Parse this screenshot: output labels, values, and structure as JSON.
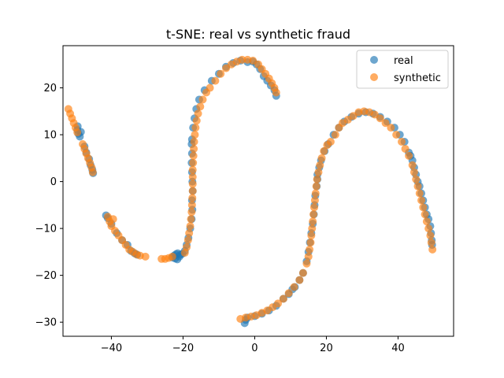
{
  "chart_data": {
    "type": "scatter",
    "title": "t-SNE: real vs synthetic fraud",
    "xlabel": "",
    "ylabel": "",
    "xlim": [
      -53.5,
      55.5
    ],
    "ylim": [
      -33,
      29
    ],
    "xticks": [
      -40,
      -20,
      0,
      20,
      40
    ],
    "yticks": [
      -30,
      -20,
      -10,
      0,
      10,
      20
    ],
    "grid": false,
    "legend": {
      "position": "top-right"
    },
    "series": [
      {
        "name": "real",
        "color": "#1f77b4",
        "points": [
          [
            -49.5,
            11
          ],
          [
            -49.2,
            10.2
          ],
          [
            -48.8,
            9.6
          ],
          [
            -49.4,
            11.8
          ],
          [
            -48.5,
            10.6
          ],
          [
            -47.5,
            7.5
          ],
          [
            -47,
            6.2
          ],
          [
            -46.2,
            4.8
          ],
          [
            -45.8,
            3.5
          ],
          [
            -45.3,
            2.5
          ],
          [
            -45.1,
            1.8
          ],
          [
            -41.5,
            -7.2
          ],
          [
            -41,
            -7.8
          ],
          [
            -40,
            -9
          ],
          [
            -38.5,
            -11
          ],
          [
            -37,
            -12.5
          ],
          [
            -35.5,
            -13.5
          ],
          [
            -34.5,
            -14.8
          ],
          [
            -33.5,
            -15.3
          ],
          [
            -32.8,
            -15.6
          ],
          [
            -23,
            -16.2
          ],
          [
            -22.5,
            -15.8
          ],
          [
            -22,
            -15.5
          ],
          [
            -21.5,
            -15.3
          ],
          [
            -21,
            -16
          ],
          [
            -20.8,
            -15.6
          ],
          [
            -22.2,
            -16.4
          ],
          [
            -21.6,
            -16.6
          ],
          [
            -20.2,
            -15.4
          ],
          [
            -19.5,
            -14.8
          ],
          [
            -19,
            -13.5
          ],
          [
            -18.5,
            -12
          ],
          [
            -18,
            -10
          ],
          [
            -17.6,
            -8
          ],
          [
            -17.4,
            -6
          ],
          [
            -17.5,
            -4
          ],
          [
            -17.3,
            -2
          ],
          [
            -17.4,
            0
          ],
          [
            -17.5,
            2
          ],
          [
            -17.6,
            4
          ],
          [
            -17.5,
            6
          ],
          [
            -17.6,
            8
          ],
          [
            -17.5,
            9
          ],
          [
            -17.2,
            11.5
          ],
          [
            -16.8,
            13.5
          ],
          [
            -16.3,
            15.5
          ],
          [
            -15.5,
            17.5
          ],
          [
            -14,
            19.5
          ],
          [
            -12,
            21.5
          ],
          [
            -10,
            23
          ],
          [
            -8,
            24.5
          ],
          [
            -6,
            25.3
          ],
          [
            -4,
            25.8
          ],
          [
            -2,
            25.5
          ],
          [
            -0.5,
            25.6
          ],
          [
            0.5,
            25
          ],
          [
            1.5,
            24
          ],
          [
            2.5,
            22.5
          ],
          [
            3.5,
            21.5
          ],
          [
            4.5,
            20.5
          ],
          [
            5.5,
            19.5
          ],
          [
            6,
            18.3
          ],
          [
            -2.5,
            -29.5
          ],
          [
            -2.8,
            -30.2
          ],
          [
            -2,
            -29
          ],
          [
            0,
            -28.7
          ],
          [
            2,
            -28.2
          ],
          [
            4,
            -27.5
          ],
          [
            6,
            -26.5
          ],
          [
            8,
            -25
          ],
          [
            9.5,
            -24
          ],
          [
            10.5,
            -23
          ],
          [
            11.2,
            -22.5
          ],
          [
            12.5,
            -21
          ],
          [
            13.5,
            -19.5
          ],
          [
            14.5,
            -17
          ],
          [
            15,
            -15
          ],
          [
            15.4,
            -13
          ],
          [
            15.8,
            -11
          ],
          [
            16.2,
            -9
          ],
          [
            16.5,
            -7
          ],
          [
            16.7,
            -5
          ],
          [
            16.9,
            -3
          ],
          [
            17.3,
            -1
          ],
          [
            17.5,
            0.5
          ],
          [
            17.5,
            1.5
          ],
          [
            18,
            3
          ],
          [
            18.5,
            4.5
          ],
          [
            19.5,
            6.5
          ],
          [
            20.5,
            8
          ],
          [
            22,
            10
          ],
          [
            23.5,
            11.5
          ],
          [
            25,
            12.8
          ],
          [
            27,
            13.8
          ],
          [
            29,
            14.5
          ],
          [
            31,
            14.8
          ],
          [
            33,
            14.5
          ],
          [
            35,
            13.8
          ],
          [
            37,
            12.8
          ],
          [
            39,
            11.5
          ],
          [
            40.5,
            10
          ],
          [
            41.8,
            8.5
          ],
          [
            43,
            6.2
          ],
          [
            43.5,
            5.5
          ],
          [
            44,
            4.5
          ],
          [
            44.5,
            3
          ],
          [
            45,
            1.5
          ],
          [
            45.5,
            0
          ],
          [
            46,
            -1
          ],
          [
            46.5,
            -2.5
          ],
          [
            47,
            -4
          ],
          [
            47.5,
            -5.5
          ],
          [
            48,
            -7
          ],
          [
            48.5,
            -8
          ],
          [
            49,
            -9.5
          ],
          [
            49.2,
            -11
          ],
          [
            49.4,
            -12.5
          ],
          [
            49.5,
            -13.5
          ]
        ]
      },
      {
        "name": "synthetic",
        "color": "#ff7f0e",
        "points": [
          [
            -52,
            15.5
          ],
          [
            -51.5,
            14.5
          ],
          [
            -51,
            13.5
          ],
          [
            -50.5,
            12.5
          ],
          [
            -50,
            11.5
          ],
          [
            -49.5,
            10.5
          ],
          [
            -48,
            8
          ],
          [
            -47.5,
            7
          ],
          [
            -47,
            6
          ],
          [
            -46.5,
            5
          ],
          [
            -46,
            4
          ],
          [
            -45.5,
            3
          ],
          [
            -45.2,
            2
          ],
          [
            -41,
            -7.5
          ],
          [
            -40.5,
            -8.5
          ],
          [
            -40,
            -9.5
          ],
          [
            -39.5,
            -8
          ],
          [
            -39,
            -10.5
          ],
          [
            -38,
            -11.5
          ],
          [
            -37,
            -12.5
          ],
          [
            -36,
            -13.5
          ],
          [
            -35,
            -14.5
          ],
          [
            -34,
            -15
          ],
          [
            -33,
            -15.5
          ],
          [
            -32,
            -15.8
          ],
          [
            -30.5,
            -16
          ],
          [
            -26,
            -16.5
          ],
          [
            -25,
            -16.5
          ],
          [
            -24,
            -16.3
          ],
          [
            -23,
            -16
          ],
          [
            -19.5,
            -15.2
          ],
          [
            -19,
            -14
          ],
          [
            -18.6,
            -12.5
          ],
          [
            -18.3,
            -11
          ],
          [
            -18,
            -9.5
          ],
          [
            -17.8,
            -8
          ],
          [
            -17.6,
            -6.5
          ],
          [
            -17.5,
            -5
          ],
          [
            -17.4,
            -3.5
          ],
          [
            -17.3,
            -2
          ],
          [
            -17.3,
            -0.5
          ],
          [
            -17.3,
            1
          ],
          [
            -17.3,
            2.5
          ],
          [
            -17.2,
            4
          ],
          [
            -17.1,
            5.5
          ],
          [
            -17,
            7
          ],
          [
            -16.9,
            8.5
          ],
          [
            -16.7,
            10
          ],
          [
            -16.5,
            11.5
          ],
          [
            -16.2,
            13
          ],
          [
            -15.8,
            14.5
          ],
          [
            -15.2,
            16
          ],
          [
            -14.5,
            17.5
          ],
          [
            -13.5,
            19
          ],
          [
            -12.5,
            20
          ],
          [
            -11,
            21.5
          ],
          [
            -9.5,
            23
          ],
          [
            -8,
            24.2
          ],
          [
            -6.5,
            25
          ],
          [
            -5,
            25.6
          ],
          [
            -3.5,
            26
          ],
          [
            -2,
            26
          ],
          [
            -0.5,
            25.8
          ],
          [
            1,
            25
          ],
          [
            2,
            24
          ],
          [
            3,
            23
          ],
          [
            4,
            22
          ],
          [
            4.8,
            21
          ],
          [
            5.5,
            20
          ],
          [
            6,
            19
          ],
          [
            -4,
            -29.3
          ],
          [
            -2.5,
            -29
          ],
          [
            -1,
            -28.8
          ],
          [
            0.5,
            -28.5
          ],
          [
            2,
            -28
          ],
          [
            3.5,
            -27.5
          ],
          [
            5,
            -26.8
          ],
          [
            6.5,
            -26
          ],
          [
            8,
            -25
          ],
          [
            9.5,
            -23.8
          ],
          [
            11,
            -22.5
          ],
          [
            12.5,
            -21
          ],
          [
            13.5,
            -19.5
          ],
          [
            14.5,
            -17.5
          ],
          [
            15,
            -16
          ],
          [
            15.3,
            -14.5
          ],
          [
            15.6,
            -13
          ],
          [
            15.8,
            -11.5
          ],
          [
            16,
            -10
          ],
          [
            16.2,
            -8.5
          ],
          [
            16.4,
            -7
          ],
          [
            16.6,
            -5.5
          ],
          [
            16.8,
            -4
          ],
          [
            17,
            -2.5
          ],
          [
            17.2,
            -1
          ],
          [
            17.4,
            0.5
          ],
          [
            17.8,
            2
          ],
          [
            18.2,
            3.5
          ],
          [
            18.7,
            5
          ],
          [
            19.3,
            6.5
          ],
          [
            20.2,
            7.8
          ],
          [
            21.2,
            8.5
          ],
          [
            22.5,
            10
          ],
          [
            23.5,
            11.5
          ],
          [
            24.5,
            12.5
          ],
          [
            26,
            13.2
          ],
          [
            27.5,
            14
          ],
          [
            29,
            14.8
          ],
          [
            30.5,
            15
          ],
          [
            32,
            14.8
          ],
          [
            33.5,
            14.3
          ],
          [
            35,
            13.5
          ],
          [
            36.5,
            12.5
          ],
          [
            38,
            11.5
          ],
          [
            39.5,
            10
          ],
          [
            41,
            8.5
          ],
          [
            42,
            7
          ],
          [
            43,
            5.5
          ],
          [
            44,
            3.5
          ],
          [
            44.5,
            2
          ],
          [
            45,
            0.5
          ],
          [
            45.5,
            -1
          ],
          [
            46,
            -2.5
          ],
          [
            46.5,
            -4
          ],
          [
            47,
            -5.5
          ],
          [
            47.5,
            -7
          ],
          [
            48,
            -8.5
          ],
          [
            48.5,
            -10
          ],
          [
            49,
            -11.5
          ],
          [
            49.3,
            -13
          ],
          [
            49.6,
            -14.5
          ]
        ]
      }
    ]
  }
}
